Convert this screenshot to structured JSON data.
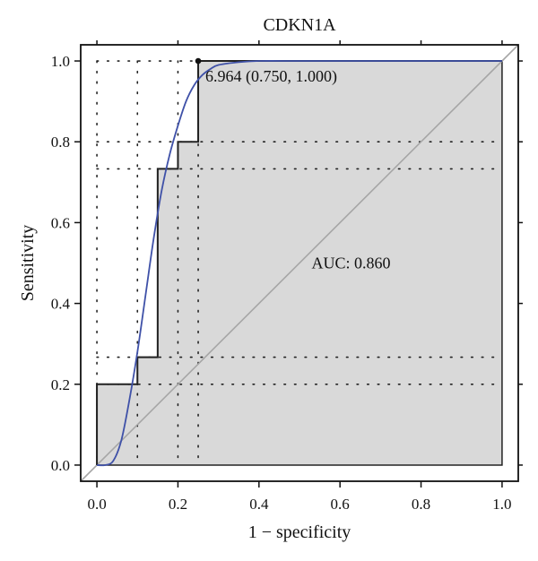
{
  "chart_data": {
    "type": "line",
    "title": "CDKN1A",
    "xlabel": "1 − specificity",
    "ylabel": "Sensitivity",
    "xlim": [
      -0.04,
      1.04
    ],
    "ylim": [
      -0.04,
      1.04
    ],
    "xticks": [
      0.0,
      0.2,
      0.4,
      0.6,
      0.8,
      1.0
    ],
    "yticks": [
      0.0,
      0.2,
      0.4,
      0.6,
      0.8,
      1.0
    ],
    "xtick_labels": [
      "0.0",
      "0.2",
      "0.4",
      "0.6",
      "0.8",
      "1.0"
    ],
    "ytick_labels": [
      "0.0",
      "0.2",
      "0.4",
      "0.6",
      "0.8",
      "1.0"
    ],
    "grid": "dotted, at empirical step thresholds",
    "grid_x": [
      0.0,
      0.1,
      0.2,
      0.25
    ],
    "grid_y": [
      0.2,
      0.267,
      0.733,
      0.8,
      1.0
    ],
    "series": [
      {
        "kind": "empirical-step",
        "color": "#222222",
        "fill": "#d9d9d9",
        "x": [
          0.0,
          0.0,
          0.1,
          0.1,
          0.15,
          0.15,
          0.2,
          0.2,
          0.25,
          0.25,
          1.0
        ],
        "y": [
          0.0,
          0.2,
          0.2,
          0.267,
          0.267,
          0.733,
          0.733,
          0.8,
          0.8,
          1.0,
          1.0
        ]
      },
      {
        "kind": "smoothed",
        "color": "#3f51a8",
        "x": [
          0.0,
          0.02,
          0.04,
          0.06,
          0.08,
          0.1,
          0.12,
          0.14,
          0.16,
          0.18,
          0.2,
          0.22,
          0.24,
          0.26,
          0.28,
          0.3,
          0.35,
          0.4,
          0.5,
          0.6,
          0.8,
          1.0
        ],
        "y": [
          0.0,
          0.0,
          0.01,
          0.06,
          0.16,
          0.28,
          0.42,
          0.56,
          0.68,
          0.77,
          0.84,
          0.9,
          0.94,
          0.965,
          0.98,
          0.99,
          0.997,
          1.0,
          1.0,
          1.0,
          1.0,
          1.0
        ]
      },
      {
        "kind": "reference-diagonal",
        "color": "#a6a6a6",
        "x": [
          -0.04,
          1.04
        ],
        "y": [
          -0.04,
          1.04
        ]
      }
    ],
    "best_point": {
      "x": 0.25,
      "y": 1.0,
      "label": "6.964 (0.750, 1.000)"
    },
    "auc_label": "AUC: 0.860",
    "auc": 0.86
  }
}
